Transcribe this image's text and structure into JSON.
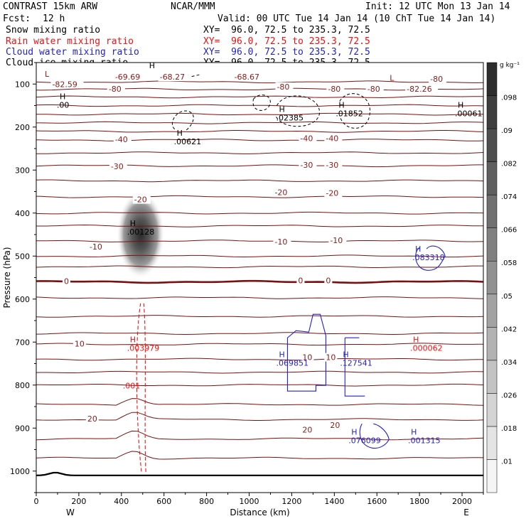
{
  "header": {
    "model": "CONTRAST 15km ARW",
    "org": "NCAR/MMM",
    "init": "Init: 12 UTC Mon 13 Jan 14",
    "fcst_label": "Fcst:",
    "fcst_value": "12 h",
    "valid": "Valid: 00 UTC Tue 14 Jan 14 (10 ChT Tue 14 Jan 14)",
    "xy_text": "XY=  96.0, 72.5 to 235.3, 72.5"
  },
  "fields": [
    {
      "name": "Snow mixing ratio",
      "color": "#000000"
    },
    {
      "name": "Rain water mixing ratio",
      "color": "#ee1111"
    },
    {
      "name": "Cloud water mixing ratio",
      "color": "#2222cc"
    },
    {
      "name": "Cloud ice mixing ratio",
      "color": "#000000"
    }
  ],
  "chart_data": {
    "type": "cross-section contour",
    "title": "CONTRAST 15km ARW",
    "xlabel": "Distance (km)",
    "ylabel": "Pressure (hPa)",
    "xlim": [
      0,
      2100
    ],
    "ylim": [
      1050,
      50
    ],
    "x_ticks": [
      0,
      200,
      400,
      600,
      800,
      1000,
      1200,
      1400,
      1600,
      1800,
      2000
    ],
    "y_ticks": [
      100,
      200,
      300,
      400,
      500,
      600,
      700,
      800,
      900,
      1000
    ],
    "x_end_labels": {
      "left": "W",
      "right": "E"
    },
    "colorbar": {
      "unit": "g kg⁻¹",
      "ticks": [
        0.01,
        0.018,
        0.026,
        0.034,
        0.042,
        0.05,
        0.058,
        0.066,
        0.074,
        0.082,
        0.09,
        0.098
      ],
      "tick_labels": [
        ".01",
        ".018",
        ".026",
        ".034",
        ".042",
        ".05",
        ".058",
        ".066",
        ".074",
        ".082",
        ".09",
        ".098"
      ]
    },
    "temperature_labels": [
      {
        "text": "-69.69",
        "x": 370,
        "p": 85
      },
      {
        "text": "-68.27",
        "x": 580,
        "p": 85
      },
      {
        "text": "-68.67",
        "x": 930,
        "p": 85
      },
      {
        "text": "-80",
        "x": 1850,
        "p": 90
      },
      {
        "text": "-82.59",
        "x": 75,
        "p": 102
      },
      {
        "text": "-80",
        "x": 340,
        "p": 113
      },
      {
        "text": "-80",
        "x": 1130,
        "p": 108
      },
      {
        "text": "-80",
        "x": 1370,
        "p": 113
      },
      {
        "text": "-80",
        "x": 1555,
        "p": 113
      },
      {
        "text": "-82.26",
        "x": 1740,
        "p": 113
      },
      {
        "text": "-40",
        "x": 370,
        "p": 230
      },
      {
        "text": "-40",
        "x": 1240,
        "p": 228
      },
      {
        "text": "-40",
        "x": 1360,
        "p": 228
      },
      {
        "text": "-30",
        "x": 350,
        "p": 293
      },
      {
        "text": "-30",
        "x": 1240,
        "p": 290
      },
      {
        "text": "-30",
        "x": 1360,
        "p": 290
      },
      {
        "text": "-20",
        "x": 460,
        "p": 370
      },
      {
        "text": "-20",
        "x": 1120,
        "p": 353
      },
      {
        "text": "-20",
        "x": 1360,
        "p": 355
      },
      {
        "text": "-10",
        "x": 250,
        "p": 480
      },
      {
        "text": "-10",
        "x": 1120,
        "p": 468
      },
      {
        "text": "-10",
        "x": 1380,
        "p": 465
      },
      {
        "text": "0",
        "x": 130,
        "p": 560
      },
      {
        "text": "0",
        "x": 1230,
        "p": 558
      },
      {
        "text": "0",
        "x": 1360,
        "p": 558
      },
      {
        "text": "10",
        "x": 180,
        "p": 705
      },
      {
        "text": "10",
        "x": 1250,
        "p": 737
      },
      {
        "text": "10",
        "x": 1360,
        "p": 737
      },
      {
        "text": "20",
        "x": 240,
        "p": 880
      },
      {
        "text": "20",
        "x": 1250,
        "p": 905
      },
      {
        "text": "20",
        "x": 1380,
        "p": 895
      }
    ],
    "extrema": [
      {
        "mark": "L",
        "value": "",
        "x": 40,
        "p": 88,
        "color": "#8b1a1a"
      },
      {
        "mark": "H",
        "value": "",
        "x": 530,
        "p": 68,
        "color": "#000000"
      },
      {
        "mark": "L",
        "value": "",
        "x": 1660,
        "p": 97,
        "color": "#8b1a1a"
      },
      {
        "mark": "H",
        "value": ".00",
        "x": 110,
        "p": 140,
        "color": "#000000"
      },
      {
        "mark": "H",
        "value": ".02385",
        "x": 1140,
        "p": 170,
        "color": "#000000"
      },
      {
        "mark": "H",
        "value": ".01852",
        "x": 1420,
        "p": 160,
        "color": "#000000"
      },
      {
        "mark": "H",
        "value": ".00061",
        "x": 1980,
        "p": 160,
        "color": "#000000"
      },
      {
        "mark": "H",
        "value": ".00621",
        "x": 660,
        "p": 225,
        "color": "#000000"
      },
      {
        "mark": "H",
        "value": ".00128",
        "x": 440,
        "p": 435,
        "color": "#000000"
      },
      {
        "mark": "H",
        "value": ".083318",
        "x": 1780,
        "p": 495,
        "color": "#2222cc"
      },
      {
        "mark": "H",
        "value": ".003979",
        "x": 440,
        "p": 705,
        "color": "#ee1111"
      },
      {
        "mark": "H",
        "value": ".000062",
        "x": 1770,
        "p": 705,
        "color": "#ee1111"
      },
      {
        "mark": "H",
        "value": ".069851",
        "x": 1140,
        "p": 740,
        "color": "#2222cc"
      },
      {
        "mark": "H",
        "value": ".127541",
        "x": 1440,
        "p": 740,
        "color": "#2222cc"
      },
      {
        "mark": "",
        "value": ".001",
        "x": 420,
        "p": 793,
        "color": "#ee1111"
      },
      {
        "mark": "H",
        "value": ".076099",
        "x": 1480,
        "p": 920,
        "color": "#2222cc"
      },
      {
        "mark": "H",
        "value": ".001315",
        "x": 1760,
        "p": 920,
        "color": "#2222cc"
      }
    ],
    "isotherm_pressures": [
      95,
      112,
      130,
      150,
      170,
      190,
      210,
      230,
      260,
      290,
      325,
      362,
      400,
      430,
      465,
      500,
      525,
      560,
      597,
      640,
      680,
      705,
      740,
      770,
      800,
      845,
      880,
      925,
      970
    ]
  }
}
